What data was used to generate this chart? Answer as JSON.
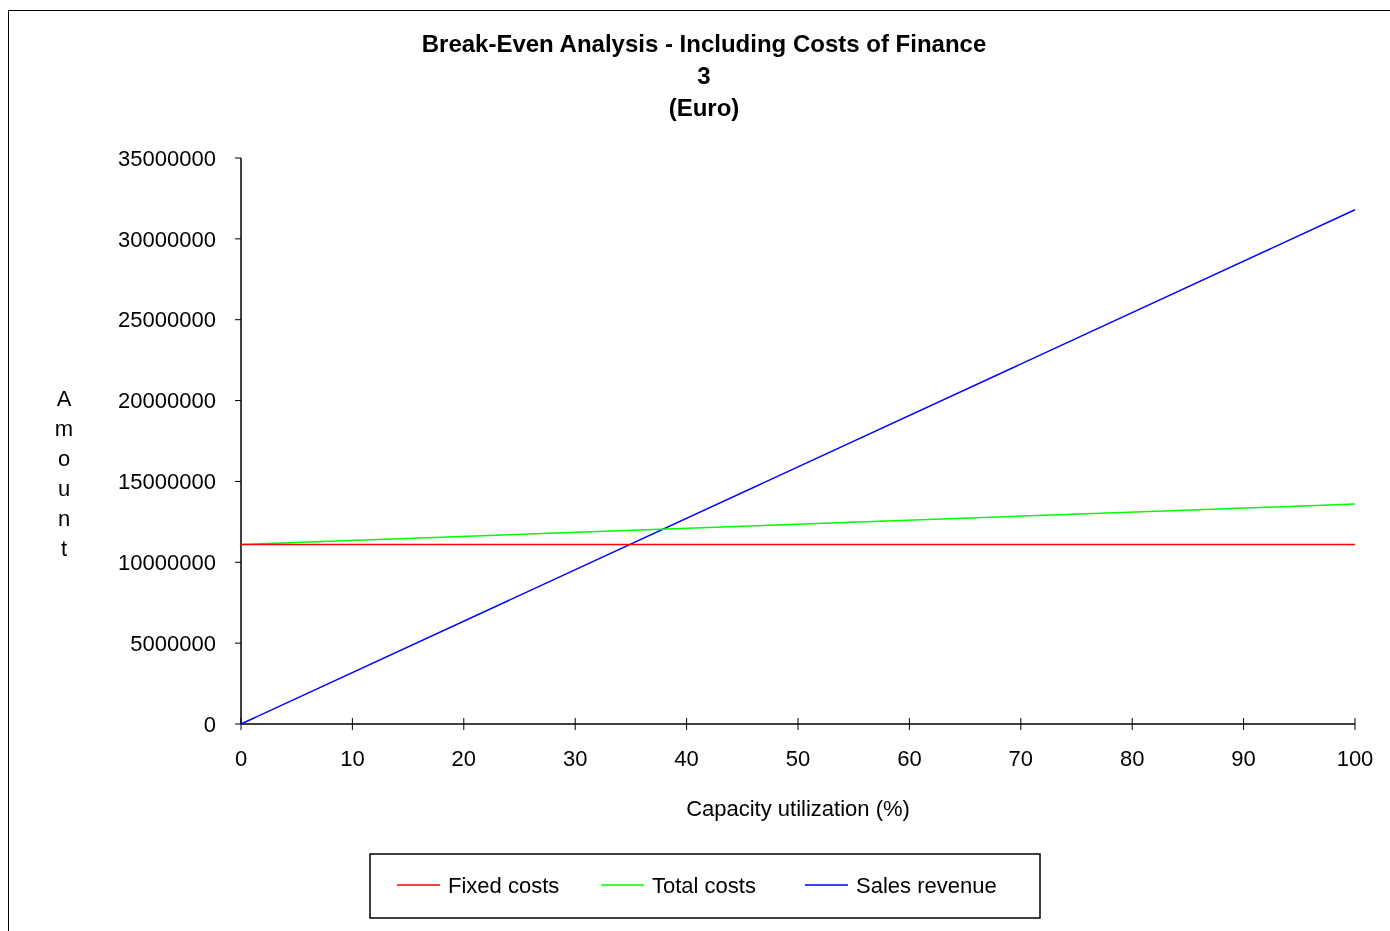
{
  "chart_data": {
    "type": "line",
    "title": "Break-Even Analysis - Including Costs of Finance\n3\n(Euro)",
    "xlabel": "Capacity utilization (%)",
    "ylabel": "Amount",
    "x": [
      0,
      100
    ],
    "series": [
      {
        "name": "Fixed costs",
        "color": "#ff0000",
        "values": [
          11100000,
          11100000
        ]
      },
      {
        "name": "Total costs",
        "color": "#00ff00",
        "values": [
          11100000,
          13600000
        ]
      },
      {
        "name": "Sales revenue",
        "color": "#0000ff",
        "values": [
          0,
          31800000
        ]
      }
    ],
    "xlim": [
      0,
      100
    ],
    "xticks": [
      0,
      10,
      20,
      30,
      40,
      50,
      60,
      70,
      80,
      90,
      100
    ],
    "ylim": [
      0,
      35000000
    ],
    "yticks": [
      0,
      5000000,
      10000000,
      15000000,
      20000000,
      25000000,
      30000000,
      35000000
    ],
    "grid": false,
    "legend": "bottom",
    "marker": "none",
    "line_style": "solid"
  }
}
